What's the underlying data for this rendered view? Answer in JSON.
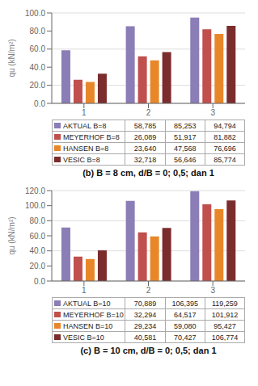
{
  "chart_data": [
    {
      "type": "bar",
      "title": "(b) B = 8 cm, d/B = 0; 0,5; dan 1",
      "ylabel": "qu (kN/m²)",
      "categories": [
        "1",
        "2",
        "3"
      ],
      "series": [
        {
          "name": "AKTUAL B=8",
          "color": "#8B7DB5",
          "values": [
            58.785,
            85.253,
            94.794
          ],
          "value_labels": [
            "58,785",
            "85,253",
            "94,794"
          ]
        },
        {
          "name": "MEYERHOF B=8",
          "color": "#C0504D",
          "values": [
            26.089,
            51.917,
            81.882
          ],
          "value_labels": [
            "26,089",
            "51,917",
            "81,882"
          ]
        },
        {
          "name": "HANSEN B=8",
          "color": "#E8872A",
          "values": [
            23.64,
            47.568,
            76.696
          ],
          "value_labels": [
            "23,640",
            "47,568",
            "76,696"
          ]
        },
        {
          "name": "VESIC B=8",
          "color": "#7B2C2C",
          "values": [
            32.718,
            56.646,
            85.774
          ],
          "value_labels": [
            "32,718",
            "56,646",
            "85,774"
          ]
        }
      ],
      "ylim": [
        0,
        100
      ],
      "yticks": [
        {
          "value": 0,
          "label": "0.0"
        },
        {
          "value": 20,
          "label": "20.0"
        },
        {
          "value": 40,
          "label": "40.0"
        },
        {
          "value": 60,
          "label": "60.0"
        },
        {
          "value": 80,
          "label": "80.0"
        },
        {
          "value": 100,
          "label": "100.0"
        }
      ],
      "grid": true,
      "legend": "bottom"
    },
    {
      "type": "bar",
      "title": "(c) B = 10 cm, d/B = 0; 0,5; dan 1",
      "ylabel": "qu (kN/m²)",
      "categories": [
        "1",
        "2",
        "3"
      ],
      "series": [
        {
          "name": "AKTUAL B=10",
          "color": "#8B7DB5",
          "values": [
            70.889,
            106.395,
            119.259
          ],
          "value_labels": [
            "70,889",
            "106,395",
            "119,259"
          ]
        },
        {
          "name": "MEYERHOF B=10",
          "color": "#C0504D",
          "values": [
            32.294,
            64.517,
            101.912
          ],
          "value_labels": [
            "32,294",
            "64,517",
            "101,912"
          ]
        },
        {
          "name": "HANSEN B=10",
          "color": "#E8872A",
          "values": [
            29.234,
            59.08,
            95.427
          ],
          "value_labels": [
            "29,234",
            "59,080",
            "95,427"
          ]
        },
        {
          "name": "VESIC B=10",
          "color": "#7B2C2C",
          "values": [
            40.581,
            70.427,
            106.774
          ],
          "value_labels": [
            "40,581",
            "70,427",
            "106,774"
          ]
        }
      ],
      "ylim": [
        0,
        120
      ],
      "yticks": [
        {
          "value": 0,
          "label": "0.0"
        },
        {
          "value": 20,
          "label": "20.0"
        },
        {
          "value": 40,
          "label": "40.0"
        },
        {
          "value": 60,
          "label": "60.0"
        },
        {
          "value": 80,
          "label": "80.0"
        },
        {
          "value": 100,
          "label": "100.0"
        },
        {
          "value": 120,
          "label": "120.0"
        }
      ],
      "grid": true,
      "legend": "bottom"
    }
  ]
}
